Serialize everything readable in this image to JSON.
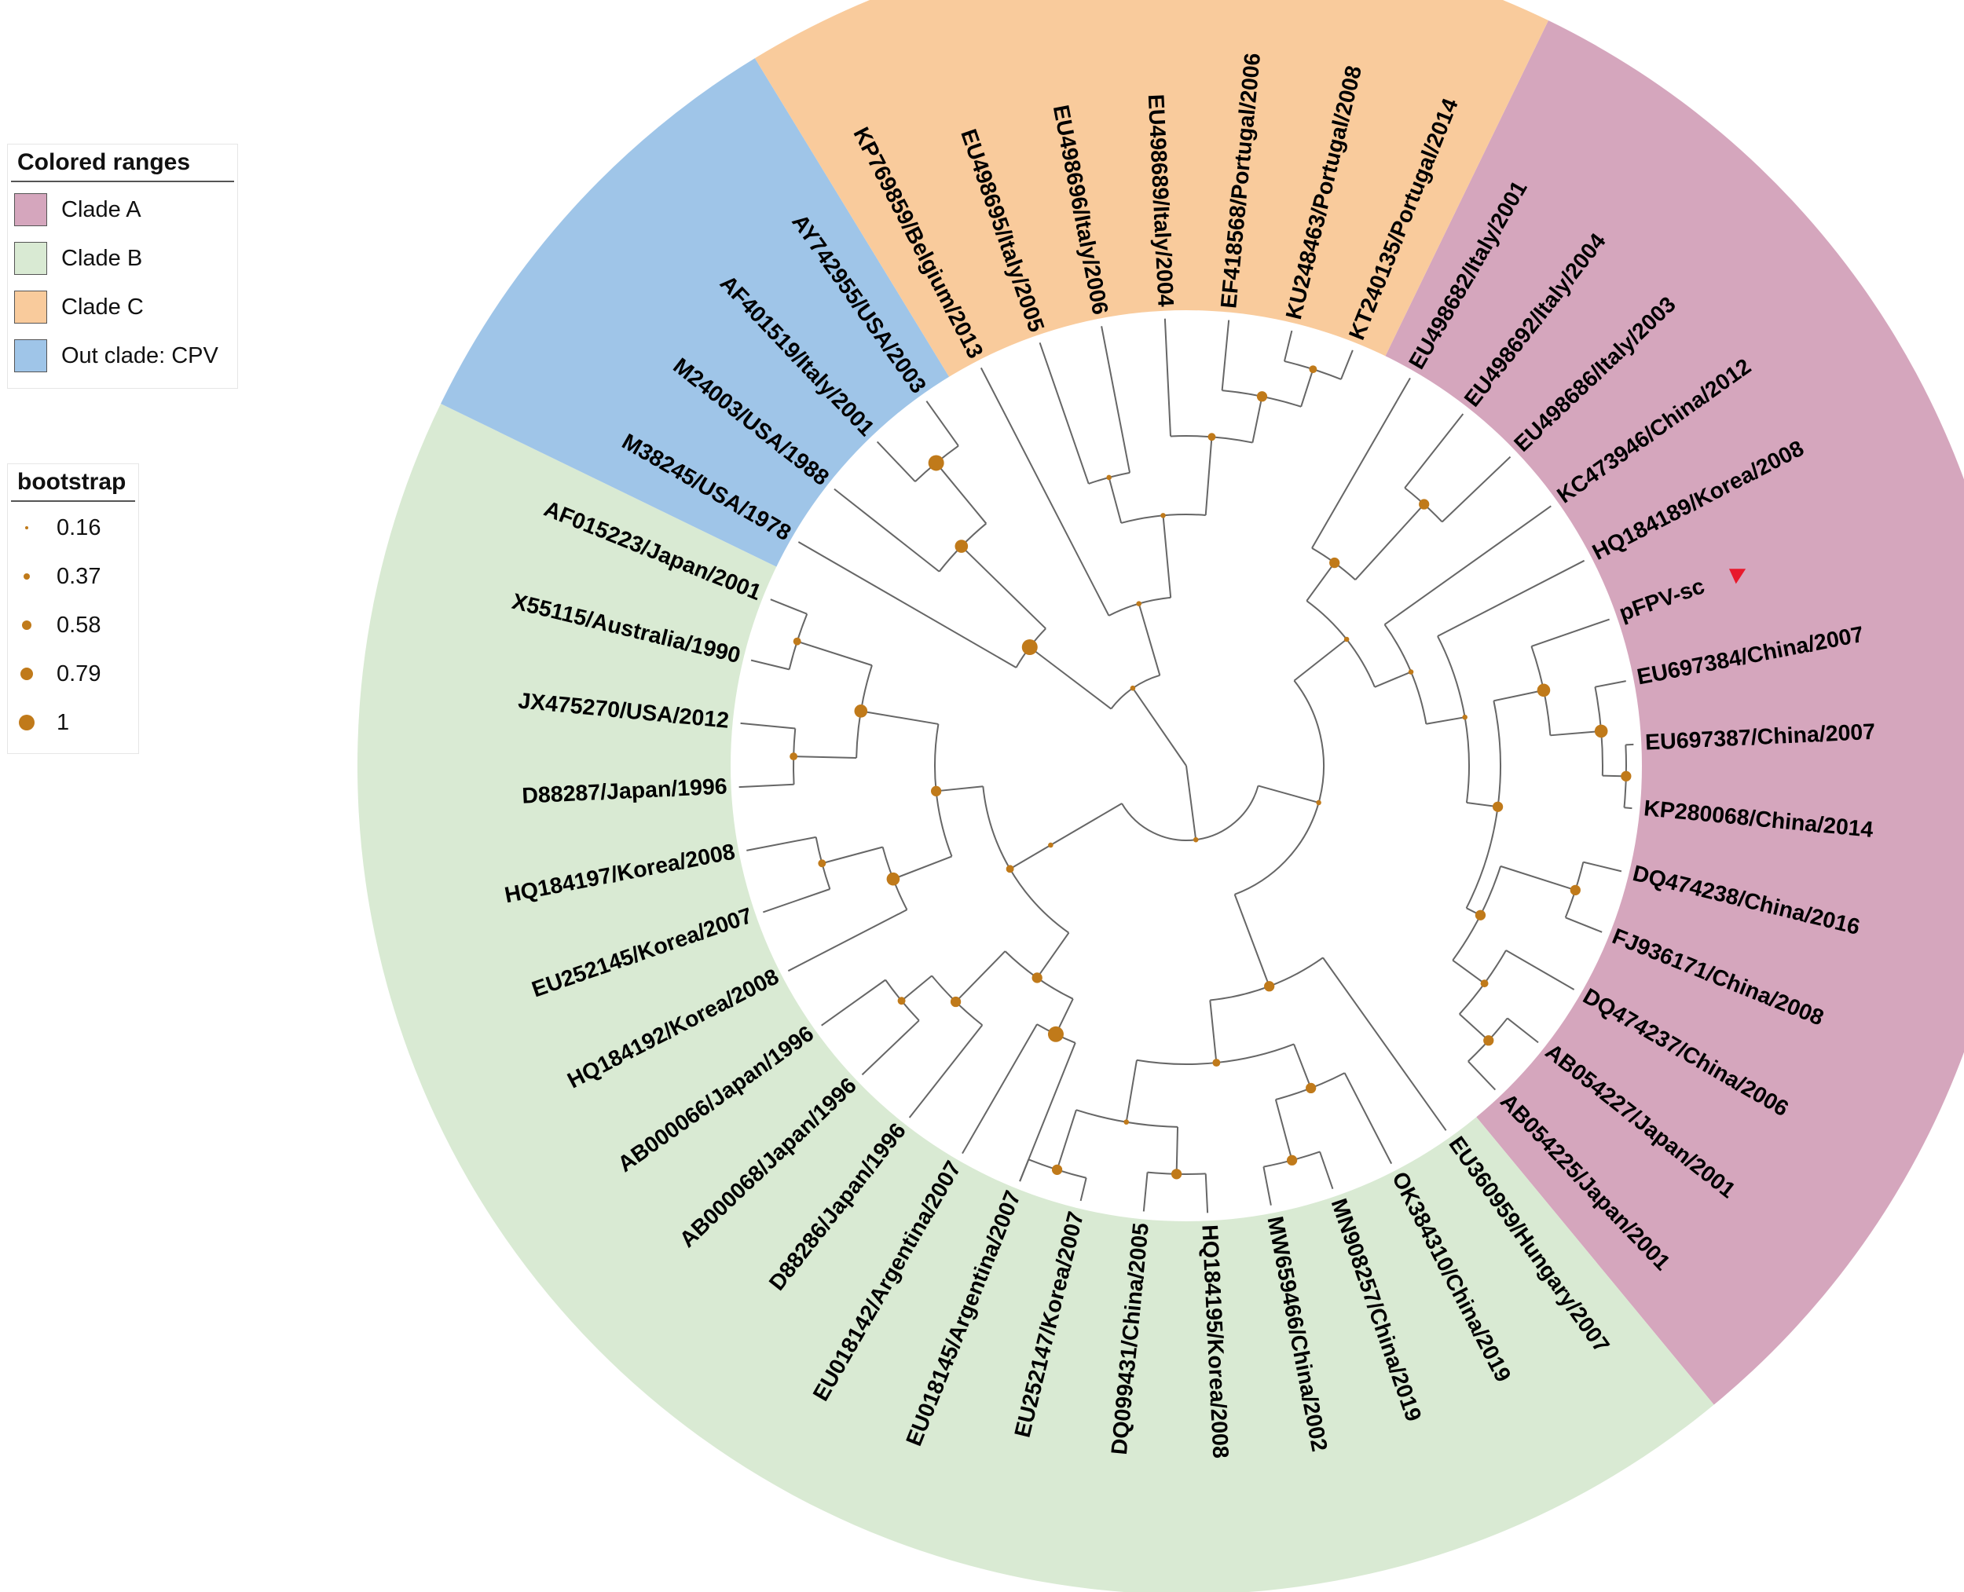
{
  "colors": {
    "clade_a": "#d5a6bd",
    "clade_b": "#d9ead3",
    "clade_c": "#f9cb9c",
    "out_clade": "#9fc5e8",
    "bootstrap_dot": "#c07a1a",
    "query_marker": "#e8192c",
    "branch": "#666666"
  },
  "legend_ranges": {
    "title": "Colored ranges",
    "items": [
      {
        "label": "Clade A",
        "color": "#d5a6bd"
      },
      {
        "label": "Clade B",
        "color": "#d9ead3"
      },
      {
        "label": "Clade C",
        "color": "#f9cb9c"
      },
      {
        "label": "Out clade: CPV",
        "color": "#9fc5e8"
      }
    ]
  },
  "legend_bootstrap": {
    "title": "bootstrap",
    "items": [
      {
        "label": "0.16",
        "value": 0.16
      },
      {
        "label": "0.37",
        "value": 0.37
      },
      {
        "label": "0.58",
        "value": 0.58
      },
      {
        "label": "0.79",
        "value": 0.79
      },
      {
        "label": "1",
        "value": 1
      }
    ]
  },
  "tree": {
    "layout": "circular",
    "query_marker": "red-triangle-icon",
    "leaves": [
      {
        "label": "EU498682/Italy/2001",
        "clade": "A"
      },
      {
        "label": "EU498692/Italy/2004",
        "clade": "A"
      },
      {
        "label": "EU498686/Italy/2003",
        "clade": "A"
      },
      {
        "label": "KC473946/China/2012",
        "clade": "A"
      },
      {
        "label": "HQ184189/Korea/2008",
        "clade": "A"
      },
      {
        "label": "pFPV-sc",
        "clade": "A",
        "query": true
      },
      {
        "label": "EU697384/China/2007",
        "clade": "A"
      },
      {
        "label": "EU697387/China/2007",
        "clade": "A"
      },
      {
        "label": "KP280068/China/2014",
        "clade": "A"
      },
      {
        "label": "DQ474238/China/2016",
        "clade": "A"
      },
      {
        "label": "FJ936171/China/2008",
        "clade": "A"
      },
      {
        "label": "DQ474237/China/2006",
        "clade": "A"
      },
      {
        "label": "AB054227/Japan/2001",
        "clade": "A"
      },
      {
        "label": "AB054225/Japan/2001",
        "clade": "A"
      },
      {
        "label": "EU360959/Hungary/2007",
        "clade": "B"
      },
      {
        "label": "OK384310/China/2019",
        "clade": "B"
      },
      {
        "label": "MN908257/China/2019",
        "clade": "B"
      },
      {
        "label": "MW659466/China/2002",
        "clade": "B"
      },
      {
        "label": "HQ184195/Korea/2008",
        "clade": "B"
      },
      {
        "label": "DQ099431/China/2005",
        "clade": "B"
      },
      {
        "label": "EU252147/Korea/2007",
        "clade": "B"
      },
      {
        "label": "EU018145/Argentina/2007",
        "clade": "B"
      },
      {
        "label": "EU018142/Argentina/2007",
        "clade": "B"
      },
      {
        "label": "D88286/Japan/1996",
        "clade": "B"
      },
      {
        "label": "AB000068/Japan/1996",
        "clade": "B"
      },
      {
        "label": "AB000066/Japan/1996",
        "clade": "B"
      },
      {
        "label": "HQ184192/Korea/2008",
        "clade": "B"
      },
      {
        "label": "EU252145/Korea/2007",
        "clade": "B"
      },
      {
        "label": "HQ184197/Korea/2008",
        "clade": "B"
      },
      {
        "label": "D88287/Japan/1996",
        "clade": "B"
      },
      {
        "label": "JX475270/USA/2012",
        "clade": "B"
      },
      {
        "label": "X55115/Australia/1990",
        "clade": "B"
      },
      {
        "label": "AF015223/Japan/2001",
        "clade": "B"
      },
      {
        "label": "M38245/USA/1978",
        "clade": "CPV"
      },
      {
        "label": "M24003/USA/1988",
        "clade": "CPV"
      },
      {
        "label": "AF401519/Italy/2001",
        "clade": "CPV"
      },
      {
        "label": "AY742955/USA/2003",
        "clade": "CPV"
      },
      {
        "label": "KP769859/Belgium/2013",
        "clade": "C"
      },
      {
        "label": "EU498695/Italy/2005",
        "clade": "C"
      },
      {
        "label": "EU498696/Italy/2006",
        "clade": "C"
      },
      {
        "label": "EU498689/Italy/2004",
        "clade": "C"
      },
      {
        "label": "EF418568/Portugal/2006",
        "clade": "C"
      },
      {
        "label": "KU248463/Portugal/2008",
        "clade": "C"
      },
      {
        "label": "KT240135/Portugal/2014",
        "clade": "C"
      }
    ]
  }
}
